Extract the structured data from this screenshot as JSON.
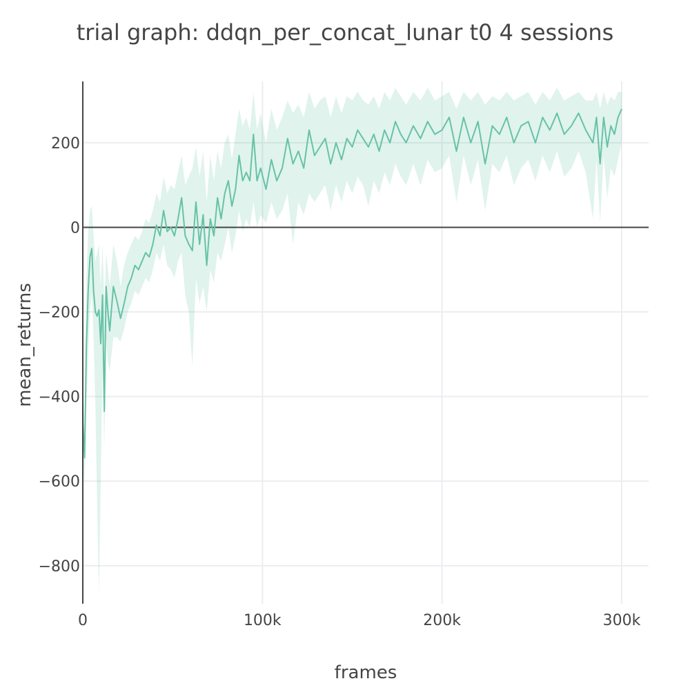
{
  "chart_data": {
    "type": "line",
    "title": "trial graph: ddqn_per_concat_lunar t0 4 sessions",
    "xlabel": "frames",
    "ylabel": "mean_returns",
    "xlim": [
      0,
      315000
    ],
    "ylim": [
      -890,
      345
    ],
    "x_ticks": [
      0,
      100000,
      200000,
      300000
    ],
    "x_tick_labels": [
      "0",
      "100k",
      "200k",
      "300k"
    ],
    "y_ticks": [
      -800,
      -600,
      -400,
      -200,
      0,
      200
    ],
    "y_tick_labels": [
      "−800",
      "−600",
      "−400",
      "−200",
      "0",
      "200"
    ],
    "grid": true,
    "zero_line": true,
    "legend": "none",
    "colors": {
      "line": "#66c2a5",
      "band": "#66c2a5",
      "band_opacity": 0.2
    },
    "series": [
      {
        "x": [
          0,
          1000,
          2000,
          3000,
          4000,
          5000,
          6000,
          7000,
          8000,
          9000,
          10000,
          11000,
          12000,
          13000,
          14000,
          15000,
          17000,
          19000,
          21000,
          23000,
          25000,
          27000,
          29000,
          31000,
          33000,
          35000,
          37000,
          39000,
          41000,
          43000,
          45000,
          47000,
          49000,
          51000,
          53000,
          55000,
          57000,
          59000,
          61000,
          63000,
          65000,
          67000,
          69000,
          71000,
          73000,
          75000,
          77000,
          79000,
          81000,
          83000,
          85000,
          87000,
          89000,
          91000,
          93000,
          95000,
          97000,
          99000,
          102000,
          105000,
          108000,
          111000,
          114000,
          117000,
          120000,
          123000,
          126000,
          129000,
          132000,
          135000,
          138000,
          141000,
          144000,
          147000,
          150000,
          153000,
          156000,
          159000,
          162000,
          165000,
          168000,
          171000,
          174000,
          177000,
          180000,
          184000,
          188000,
          192000,
          196000,
          200000,
          204000,
          208000,
          212000,
          216000,
          220000,
          224000,
          228000,
          232000,
          236000,
          240000,
          244000,
          248000,
          252000,
          256000,
          260000,
          264000,
          268000,
          272000,
          276000,
          280000,
          284000,
          286000,
          288000,
          290000,
          292000,
          294000,
          296000,
          298000,
          300000
        ],
        "y": [
          -460,
          -545,
          -280,
          -150,
          -70,
          -50,
          -150,
          -200,
          -210,
          -195,
          -275,
          -160,
          -435,
          -140,
          -200,
          -245,
          -140,
          -175,
          -215,
          -180,
          -140,
          -120,
          -90,
          -100,
          -80,
          -60,
          -70,
          -40,
          5,
          -20,
          40,
          -10,
          0,
          -20,
          20,
          70,
          -20,
          -40,
          -55,
          60,
          -40,
          30,
          -90,
          20,
          -20,
          70,
          20,
          80,
          110,
          50,
          90,
          170,
          110,
          130,
          110,
          220,
          110,
          140,
          90,
          160,
          110,
          140,
          210,
          150,
          180,
          140,
          230,
          170,
          190,
          210,
          150,
          200,
          160,
          210,
          190,
          230,
          210,
          190,
          220,
          180,
          230,
          200,
          250,
          220,
          200,
          240,
          210,
          250,
          220,
          230,
          260,
          180,
          260,
          200,
          250,
          150,
          240,
          220,
          260,
          200,
          240,
          250,
          200,
          260,
          230,
          270,
          220,
          240,
          270,
          230,
          200,
          260,
          150,
          260,
          190,
          240,
          220,
          260,
          280
        ],
        "y_lower": [
          -520,
          -620,
          -420,
          -300,
          -200,
          -160,
          -260,
          -420,
          -650,
          -870,
          -600,
          -320,
          -520,
          -260,
          -320,
          -340,
          -260,
          -260,
          -270,
          -240,
          -200,
          -180,
          -150,
          -160,
          -140,
          -120,
          -130,
          -100,
          -60,
          -80,
          -40,
          -90,
          -100,
          -120,
          -80,
          -60,
          -160,
          -200,
          -330,
          -120,
          -180,
          -140,
          -200,
          -100,
          -130,
          -60,
          -80,
          -40,
          0,
          -60,
          -20,
          40,
          -10,
          20,
          0,
          60,
          0,
          30,
          10,
          60,
          20,
          40,
          80,
          -40,
          60,
          30,
          80,
          60,
          80,
          100,
          40,
          100,
          60,
          110,
          80,
          120,
          100,
          50,
          110,
          80,
          130,
          100,
          150,
          120,
          100,
          150,
          100,
          160,
          130,
          140,
          170,
          60,
          170,
          100,
          160,
          40,
          150,
          130,
          170,
          100,
          140,
          160,
          110,
          170,
          130,
          180,
          120,
          140,
          180,
          130,
          20,
          160,
          10,
          170,
          70,
          140,
          120,
          160,
          200
        ],
        "y_upper": [
          -380,
          -460,
          -120,
          -10,
          40,
          50,
          -20,
          -80,
          -60,
          -40,
          -140,
          -40,
          -180,
          -60,
          -100,
          -140,
          -40,
          -80,
          -140,
          -90,
          -60,
          -40,
          -20,
          -30,
          -10,
          20,
          10,
          40,
          80,
          60,
          120,
          80,
          100,
          90,
          130,
          170,
          100,
          120,
          140,
          190,
          120,
          180,
          60,
          170,
          110,
          180,
          140,
          200,
          220,
          160,
          220,
          280,
          240,
          260,
          230,
          320,
          230,
          270,
          200,
          280,
          230,
          260,
          300,
          270,
          290,
          260,
          320,
          280,
          300,
          310,
          260,
          310,
          270,
          310,
          300,
          320,
          300,
          290,
          310,
          280,
          320,
          300,
          330,
          310,
          290,
          320,
          300,
          330,
          300,
          310,
          320,
          280,
          320,
          300,
          320,
          290,
          310,
          300,
          320,
          300,
          310,
          320,
          290,
          320,
          300,
          330,
          300,
          310,
          320,
          300,
          300,
          320,
          280,
          320,
          290,
          310,
          300,
          320,
          320
        ]
      }
    ]
  }
}
